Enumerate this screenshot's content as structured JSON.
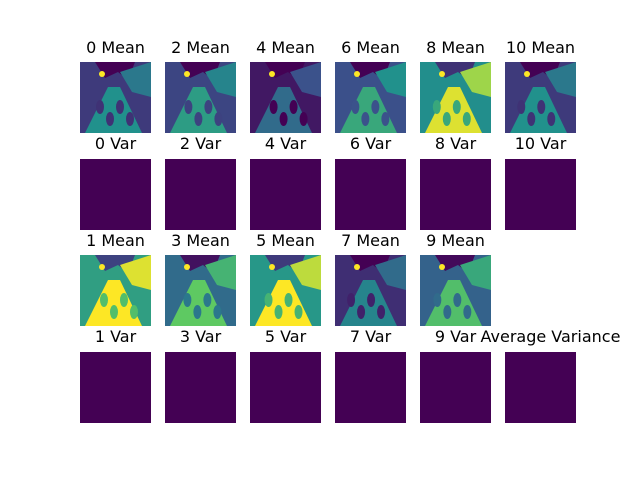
{
  "colors": {
    "background": "#ffffff",
    "variance_fill": "#440154",
    "viridis_dark": "#440154",
    "viridis_blue": "#3b528b",
    "viridis_teal": "#21918c",
    "viridis_green": "#5ec962",
    "viridis_yellow": "#fde725"
  },
  "colormap": "viridis",
  "rows": [
    {
      "kind": "mean",
      "tiles": [
        {
          "title": "0 Mean",
          "level": 0.25
        },
        {
          "title": "2 Mean",
          "level": 0.3
        },
        {
          "title": "4 Mean",
          "level": 0.1
        },
        {
          "title": "6 Mean",
          "level": 0.35
        },
        {
          "title": "8 Mean",
          "level": 0.7
        },
        {
          "title": "10 Mean",
          "level": 0.25
        }
      ]
    },
    {
      "kind": "var",
      "tiles": [
        {
          "title": "0 Var"
        },
        {
          "title": "2 Var"
        },
        {
          "title": "4 Var"
        },
        {
          "title": "6 Var"
        },
        {
          "title": "8 Var"
        },
        {
          "title": "10 Var"
        }
      ]
    },
    {
      "kind": "mean",
      "tiles": [
        {
          "title": "1 Mean",
          "level": 0.8
        },
        {
          "title": "3 Mean",
          "level": 0.5
        },
        {
          "title": "5 Mean",
          "level": 0.75
        },
        {
          "title": "7 Mean",
          "level": 0.2
        },
        {
          "title": "9 Mean",
          "level": 0.45
        }
      ]
    },
    {
      "kind": "var",
      "tiles": [
        {
          "title": "1 Var"
        },
        {
          "title": "3 Var"
        },
        {
          "title": "5 Var"
        },
        {
          "title": "7 Var"
        },
        {
          "title": "9 Var"
        },
        {
          "title": "Average Variance"
        }
      ]
    }
  ]
}
